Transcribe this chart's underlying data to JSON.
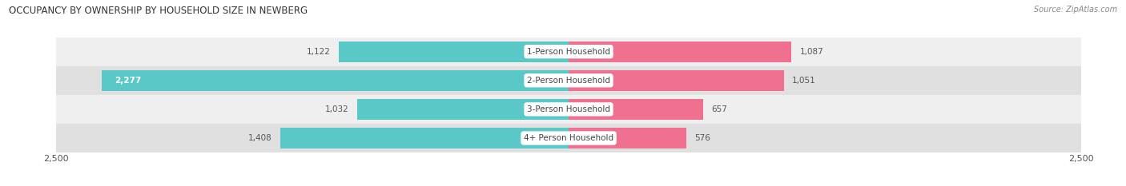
{
  "title": "OCCUPANCY BY OWNERSHIP BY HOUSEHOLD SIZE IN NEWBERG",
  "source": "Source: ZipAtlas.com",
  "categories": [
    "1-Person Household",
    "2-Person Household",
    "3-Person Household",
    "4+ Person Household"
  ],
  "owner_values": [
    1122,
    2277,
    1032,
    1408
  ],
  "renter_values": [
    1087,
    1051,
    657,
    576
  ],
  "owner_color": "#5BC8C8",
  "renter_color": "#F07090",
  "renter_color_light": "#F8A0B8",
  "axis_max": 2500,
  "row_bg_colors": [
    "#EFEFEF",
    "#E0E0E0"
  ],
  "label_color": "#555555",
  "figsize": [
    14.06,
    2.33
  ],
  "dpi": 100
}
